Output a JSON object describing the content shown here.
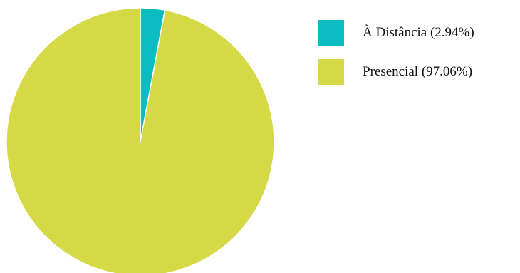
{
  "chart_data": {
    "type": "pie",
    "title": "",
    "slices": [
      {
        "label": "À Distância",
        "legend_label": "À Distância (2.94%)",
        "value": 2.94,
        "color": "#0bbcc0"
      },
      {
        "label": "Presencial",
        "legend_label": "Presencial (97.06%)",
        "value": 97.06,
        "color": "#d4d945"
      }
    ],
    "start_angle_deg": 0,
    "direction": "clockwise",
    "slice_border_color": "#ffffff",
    "legend_position": "top-right"
  }
}
